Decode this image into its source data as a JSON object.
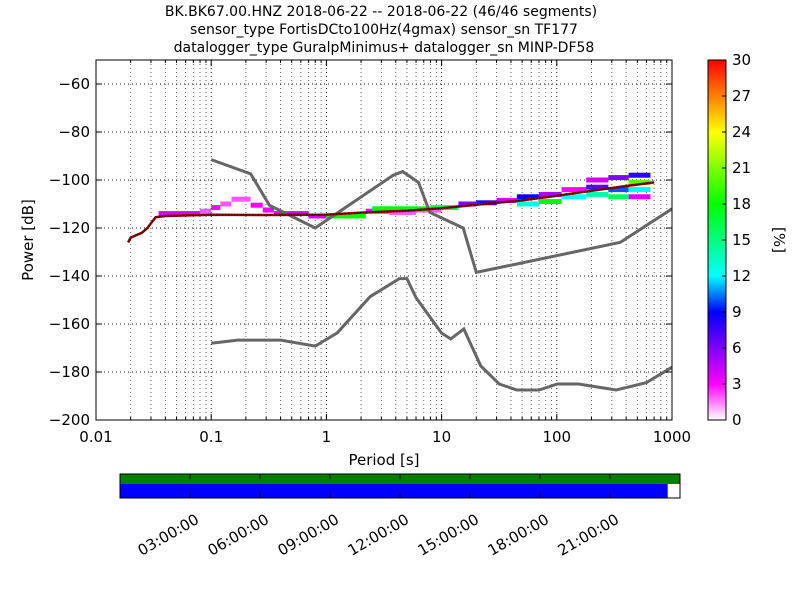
{
  "title": {
    "line1": "BK.BK67.00.HNZ   2018-06-22 -- 2018-06-22  (46/46 segments)",
    "line2": "sensor_type FortisDCto100Hz(4gmax) sensor_sn TF177",
    "line3": "datalogger_type GuralpMinimus+ datalogger_sn MINP-DF58"
  },
  "chart_data": {
    "type": "heatmap",
    "xlabel": "Period [s]",
    "ylabel": "Power [dB]",
    "xscale": "log",
    "xlim": [
      0.01,
      1000
    ],
    "ylim": [
      -200,
      -50
    ],
    "grid": "dotted",
    "xticks": [
      {
        "value": 0.01,
        "label": "0.01"
      },
      {
        "value": 0.1,
        "label": "0.1"
      },
      {
        "value": 1,
        "label": "1"
      },
      {
        "value": 10,
        "label": "10"
      },
      {
        "value": 100,
        "label": "100"
      },
      {
        "value": 1000,
        "label": "1000"
      }
    ],
    "yticks": [
      {
        "value": -60,
        "label": "−60"
      },
      {
        "value": -80,
        "label": "−80"
      },
      {
        "value": -100,
        "label": "−100"
      },
      {
        "value": -120,
        "label": "−120"
      },
      {
        "value": -140,
        "label": "−140"
      },
      {
        "value": -160,
        "label": "−160"
      },
      {
        "value": -180,
        "label": "−180"
      },
      {
        "value": -200,
        "label": "−200"
      }
    ],
    "noise_model_high": [
      [
        0.1,
        -91.5
      ],
      [
        0.22,
        -97.4
      ],
      [
        0.32,
        -110.5
      ],
      [
        0.8,
        -120
      ],
      [
        3.8,
        -98
      ],
      [
        4.6,
        -96.5
      ],
      [
        6.3,
        -101
      ],
      [
        7.9,
        -113.5
      ],
      [
        15.4,
        -120
      ],
      [
        20,
        -138.5
      ],
      [
        354.8,
        -126
      ],
      [
        1000,
        -112
      ]
    ],
    "noise_model_low": [
      [
        0.1,
        -168
      ],
      [
        0.17,
        -166.7
      ],
      [
        0.4,
        -166.7
      ],
      [
        0.8,
        -169.2
      ],
      [
        1.24,
        -163.7
      ],
      [
        2.4,
        -148.6
      ],
      [
        4.3,
        -141.1
      ],
      [
        5,
        -141.1
      ],
      [
        6,
        -149
      ],
      [
        10,
        -163.8
      ],
      [
        12,
        -166.2
      ],
      [
        15.6,
        -162.1
      ],
      [
        21.9,
        -177.5
      ],
      [
        31.6,
        -185
      ],
      [
        45,
        -187.5
      ],
      [
        70,
        -187.5
      ],
      [
        101,
        -185
      ],
      [
        154,
        -185
      ],
      [
        328,
        -187.5
      ],
      [
        600,
        -184.4
      ],
      [
        1000,
        -178
      ]
    ],
    "median_curve": [
      [
        0.019,
        -126
      ],
      [
        0.02,
        -124
      ],
      [
        0.025,
        -122
      ],
      [
        0.028,
        -120
      ],
      [
        0.03,
        -118
      ],
      [
        0.033,
        -115.5
      ],
      [
        0.04,
        -115
      ],
      [
        0.1,
        -114.5
      ],
      [
        0.3,
        -114.6
      ],
      [
        1,
        -114.4
      ],
      [
        2,
        -113.6
      ],
      [
        5,
        -112.8
      ],
      [
        10,
        -111.8
      ],
      [
        20,
        -110.3
      ],
      [
        50,
        -108.5
      ],
      [
        100,
        -106.6
      ],
      [
        200,
        -104.5
      ],
      [
        400,
        -102.5
      ],
      [
        700,
        -101
      ]
    ],
    "segments": [
      {
        "x0": 0.035,
        "x1": 0.08,
        "y": -114,
        "pct": 4
      },
      {
        "x0": 0.08,
        "x1": 0.1,
        "y": -113,
        "pct": 2
      },
      {
        "x0": 0.1,
        "x1": 0.12,
        "y": -111.5,
        "pct": 3
      },
      {
        "x0": 0.12,
        "x1": 0.15,
        "y": -110,
        "pct": 2
      },
      {
        "x0": 0.15,
        "x1": 0.22,
        "y": -108,
        "pct": 2
      },
      {
        "x0": 0.22,
        "x1": 0.28,
        "y": -110.5,
        "pct": 3
      },
      {
        "x0": 0.28,
        "x1": 0.35,
        "y": -112.5,
        "pct": 3
      },
      {
        "x0": 0.35,
        "x1": 0.7,
        "y": -114,
        "pct": 4
      },
      {
        "x0": 0.7,
        "x1": 1.0,
        "y": -115,
        "pct": 4
      },
      {
        "x0": 1.0,
        "x1": 2.2,
        "y": -115,
        "pct": 18
      },
      {
        "x0": 2.2,
        "x1": 3.5,
        "y": -113,
        "pct": 3
      },
      {
        "x0": 3.5,
        "x1": 6.0,
        "y": -113.5,
        "pct": 2
      },
      {
        "x0": 6.0,
        "x1": 10.0,
        "y": -112.5,
        "pct": 2
      },
      {
        "x0": 2.5,
        "x1": 8.0,
        "y": -112,
        "pct": 18
      },
      {
        "x0": 8.0,
        "x1": 14.0,
        "y": -111.5,
        "pct": 16
      },
      {
        "x0": 14.0,
        "x1": 20.0,
        "y": -110,
        "pct": 6
      },
      {
        "x0": 20.0,
        "x1": 30.0,
        "y": -109.5,
        "pct": 8
      },
      {
        "x0": 30.0,
        "x1": 45.0,
        "y": -108.5,
        "pct": 4
      },
      {
        "x0": 45.0,
        "x1": 70.0,
        "y": -107,
        "pct": 9
      },
      {
        "x0": 45.0,
        "x1": 70.0,
        "y": -110,
        "pct": 13
      },
      {
        "x0": 70.0,
        "x1": 110.0,
        "y": -106,
        "pct": 5
      },
      {
        "x0": 70.0,
        "x1": 110.0,
        "y": -109,
        "pct": 18
      },
      {
        "x0": 110.0,
        "x1": 180.0,
        "y": -104,
        "pct": 3
      },
      {
        "x0": 110.0,
        "x1": 180.0,
        "y": -107,
        "pct": 12
      },
      {
        "x0": 180.0,
        "x1": 280.0,
        "y": -100,
        "pct": 4
      },
      {
        "x0": 180.0,
        "x1": 280.0,
        "y": -103,
        "pct": 7
      },
      {
        "x0": 180.0,
        "x1": 280.0,
        "y": -106,
        "pct": 14
      },
      {
        "x0": 280.0,
        "x1": 420.0,
        "y": -99,
        "pct": 6
      },
      {
        "x0": 280.0,
        "x1": 420.0,
        "y": -104,
        "pct": 10
      },
      {
        "x0": 280.0,
        "x1": 420.0,
        "y": -107,
        "pct": 16
      },
      {
        "x0": 420.0,
        "x1": 650.0,
        "y": -98,
        "pct": 8
      },
      {
        "x0": 420.0,
        "x1": 650.0,
        "y": -101,
        "pct": 20
      },
      {
        "x0": 420.0,
        "x1": 650.0,
        "y": -104,
        "pct": 12
      },
      {
        "x0": 420.0,
        "x1": 650.0,
        "y": -107,
        "pct": 4
      }
    ],
    "colorbar": {
      "label": "[%]",
      "min": 0,
      "max": 30,
      "ticks": [
        {
          "value": 0,
          "label": "0"
        },
        {
          "value": 3,
          "label": "3"
        },
        {
          "value": 6,
          "label": "6"
        },
        {
          "value": 9,
          "label": "9"
        },
        {
          "value": 12,
          "label": "12"
        },
        {
          "value": 15,
          "label": "15"
        },
        {
          "value": 18,
          "label": "18"
        },
        {
          "value": 21,
          "label": "21"
        },
        {
          "value": 24,
          "label": "24"
        },
        {
          "value": 27,
          "label": "27"
        },
        {
          "value": 30,
          "label": "30"
        }
      ]
    },
    "timeline": {
      "top_color": "#008000",
      "bottom_color": "#0000ff",
      "coverage_fraction": 0.978,
      "tick_labels": [
        "03:00:00",
        "06:00:00",
        "09:00:00",
        "12:00:00",
        "15:00:00",
        "18:00:00",
        "21:00:00"
      ],
      "tick_fractions": [
        0.125,
        0.25,
        0.375,
        0.5,
        0.625,
        0.75,
        0.875
      ]
    }
  }
}
